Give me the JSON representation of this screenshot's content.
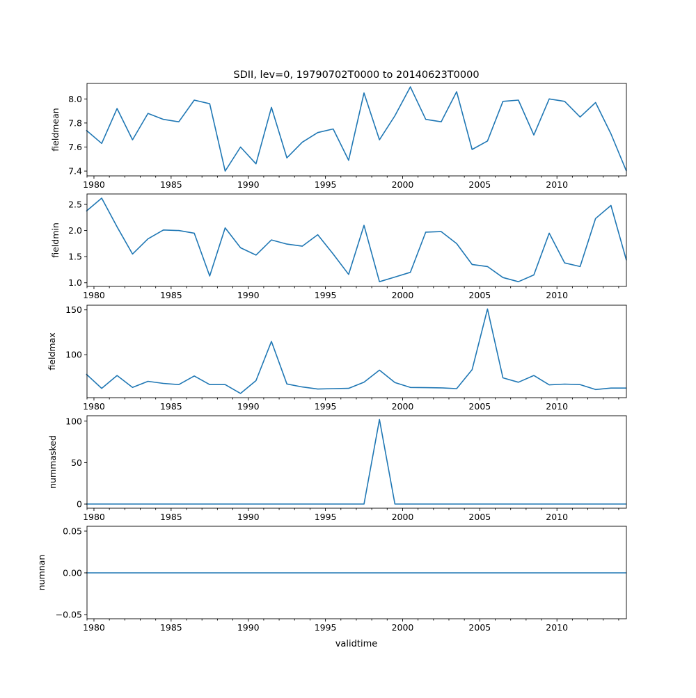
{
  "chart_data": [
    {
      "type": "line",
      "title": "SDII, lev=0, 19790702T0000 to 20140623T0000",
      "ylabel": "fieldmean",
      "ylim": [
        7.36,
        8.129
      ],
      "yticks": [
        "7.4",
        "7.6",
        "7.8",
        "8.0"
      ],
      "values": [
        7.74,
        7.63,
        7.92,
        7.66,
        7.88,
        7.83,
        7.81,
        7.99,
        7.96,
        7.4,
        7.6,
        7.46,
        7.93,
        7.51,
        7.64,
        7.72,
        7.75,
        7.49,
        8.05,
        7.66,
        7.86,
        8.1,
        7.83,
        7.81,
        8.06,
        7.58,
        7.65,
        7.98,
        7.99,
        7.7,
        8.0,
        7.98,
        7.85,
        7.97,
        7.71,
        7.4
      ]
    },
    {
      "type": "line",
      "ylabel": "fieldmin",
      "ylim": [
        0.93,
        2.7
      ],
      "yticks": [
        "1.0",
        "1.5",
        "2.0",
        "2.5"
      ],
      "values": [
        2.37,
        2.62,
        2.07,
        1.55,
        1.84,
        2.01,
        2.0,
        1.95,
        1.13,
        2.05,
        1.67,
        1.53,
        1.82,
        1.74,
        1.7,
        1.92,
        1.55,
        1.16,
        2.1,
        1.02,
        1.11,
        1.2,
        1.97,
        1.98,
        1.75,
        1.35,
        1.31,
        1.1,
        1.02,
        1.15,
        1.95,
        1.38,
        1.31,
        2.23,
        2.48,
        1.43
      ]
    },
    {
      "type": "line",
      "ylabel": "fieldmax",
      "ylim": [
        52.1,
        155.2
      ],
      "yticks": [
        "100",
        "150"
      ],
      "values": [
        78.4,
        62.5,
        76.8,
        63.5,
        70.3,
        68.0,
        66.7,
        76.3,
        66.7,
        66.7,
        56.8,
        71.1,
        114.8,
        67.4,
        64.0,
        61.7,
        62.2,
        62.5,
        69.3,
        82.8,
        69.0,
        63.5,
        63.3,
        63.0,
        62.2,
        83.3,
        151.0,
        74.2,
        69.3,
        76.8,
        66.4,
        67.2,
        66.7,
        61.2,
        62.8,
        62.8
      ]
    },
    {
      "type": "line",
      "ylabel": "nummasked",
      "ylim": [
        -5,
        106.5
      ],
      "yticks": [
        "0",
        "50",
        "100"
      ],
      "values": [
        0,
        0,
        0,
        0,
        0,
        0,
        0,
        0,
        0,
        0,
        0,
        0,
        0,
        0,
        0,
        0,
        0,
        0,
        0,
        102,
        0,
        0,
        0,
        0,
        0,
        0,
        0,
        0,
        0,
        0,
        0,
        0,
        0,
        0,
        0,
        0
      ]
    },
    {
      "type": "line",
      "ylabel": "numnan",
      "xlabel": "validtime",
      "ylim": [
        -0.055,
        0.0558
      ],
      "yticks": [
        "−0.05",
        "0.00",
        "0.05"
      ],
      "values": [
        0,
        0,
        0,
        0,
        0,
        0,
        0,
        0,
        0,
        0,
        0,
        0,
        0,
        0,
        0,
        0,
        0,
        0,
        0,
        0,
        0,
        0,
        0,
        0,
        0,
        0,
        0,
        0,
        0,
        0,
        0,
        0,
        0,
        0,
        0,
        0
      ]
    }
  ],
  "x": {
    "start": 1979.5,
    "step": 1,
    "xlim": [
      1979.55,
      2014.5
    ],
    "major_ticks": [
      "1980",
      "1985",
      "1990",
      "1995",
      "2000",
      "2005",
      "2010"
    ],
    "minor_tick_step_years": 1
  },
  "colors": {
    "line": "#1f77b4",
    "axis": "#000000"
  }
}
